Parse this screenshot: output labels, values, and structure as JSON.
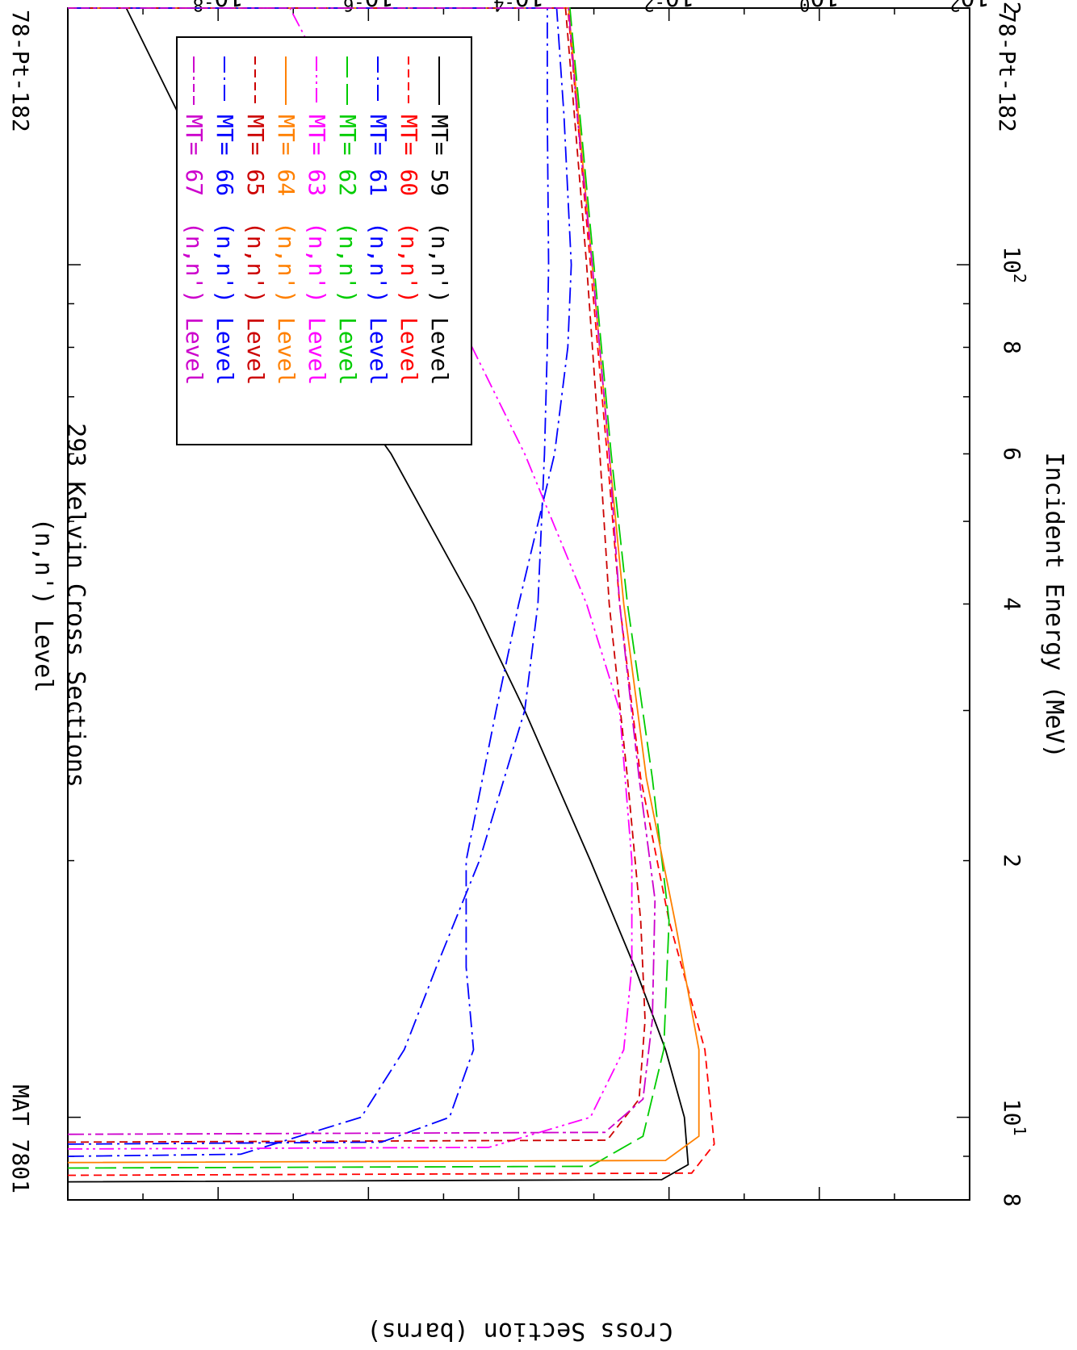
{
  "header": {
    "title_line1": "(n,n') Level",
    "title_line2": "293 Kelvin Cross Sections",
    "mat_label": "MAT 7801",
    "isotope_left": "78-Pt-182",
    "isotope_right": "78-Pt-182"
  },
  "chart_data": {
    "type": "line",
    "orientation": "rotated 90 degrees clockwise",
    "xlabel": "Incident Energy (MeV)",
    "ylabel": "Cross Section (barns)",
    "xscale": "log",
    "yscale": "log",
    "xlim": [
      8,
      200
    ],
    "ylim": [
      1e-10,
      100
    ],
    "x_ticks": [
      {
        "value": 8,
        "label": "8"
      },
      {
        "value": 20,
        "label": "2"
      },
      {
        "value": 40,
        "label": "4"
      },
      {
        "value": 60,
        "label": "6"
      },
      {
        "value": 80,
        "label": "8"
      },
      {
        "value": 100,
        "label": "10",
        "exp": "2"
      },
      {
        "value": 200,
        "label": "2"
      }
    ],
    "x_ticks_top": [
      {
        "value": 10,
        "label": "10",
        "exp": "1"
      }
    ],
    "y_ticks": [
      {
        "value": 100,
        "label": "10",
        "exp": "2"
      },
      {
        "value": 1,
        "label": "10",
        "exp": "0"
      },
      {
        "value": 0.01,
        "label": "10",
        "exp": "-2"
      },
      {
        "value": 0.0001,
        "label": "10",
        "exp": "-4"
      },
      {
        "value": 1e-06,
        "label": "10",
        "exp": "-6"
      },
      {
        "value": 1e-08,
        "label": "10",
        "exp": "-8"
      }
    ],
    "legend_position": "top-right",
    "series": [
      {
        "name": "MT= 59 (n,n') Level",
        "mt": "MT= 59",
        "rx": "(n,n') Level",
        "color": "#000000",
        "dash": "solid",
        "points": [
          [
            8.4,
            1e-10
          ],
          [
            8.45,
            0.008
          ],
          [
            8.8,
            0.018
          ],
          [
            10,
            0.016
          ],
          [
            12,
            0.009
          ],
          [
            15,
            0.0035
          ],
          [
            20,
            0.0009
          ],
          [
            30,
            0.00012
          ],
          [
            40,
            2.5e-05
          ],
          [
            60,
            2e-06
          ],
          [
            80,
            2e-07
          ],
          [
            100,
            4e-08
          ],
          [
            150,
            3e-09
          ],
          [
            200,
            6e-10
          ],
          [
            265,
            1e-10
          ]
        ]
      },
      {
        "name": "MT= 60 (n,n') Level",
        "mt": "MT= 60",
        "rx": "(n,n') Level",
        "color": "#ff0000",
        "dash": "dashed",
        "points": [
          [
            8.55,
            1e-10
          ],
          [
            8.6,
            0.02
          ],
          [
            9.3,
            0.04
          ],
          [
            12,
            0.03
          ],
          [
            17,
            0.01
          ],
          [
            25,
            0.0042
          ],
          [
            40,
            0.0022
          ],
          [
            60,
            0.0015
          ],
          [
            100,
            0.0009
          ],
          [
            150,
            0.0006
          ],
          [
            200,
            0.00045
          ],
          [
            265,
            0.00035
          ],
          [
            265.2,
            1e-10
          ]
        ]
      },
      {
        "name": "MT= 61 (n,n') Level",
        "mt": "MT= 61",
        "rx": "(n,n') Level",
        "color": "#0000ff",
        "dash": "dashdot",
        "points": [
          [
            9.0,
            1e-10
          ],
          [
            9.05,
            2e-08
          ],
          [
            10,
            8e-07
          ],
          [
            12,
            3e-06
          ],
          [
            15,
            8e-06
          ],
          [
            20,
            3e-05
          ],
          [
            30,
            0.00012
          ],
          [
            40,
            0.00018
          ],
          [
            60,
            0.00022
          ],
          [
            80,
            0.00024
          ],
          [
            100,
            0.00025
          ],
          [
            150,
            0.00024
          ],
          [
            200,
            0.00024
          ],
          [
            270,
            0.00023
          ],
          [
            270.2,
            1e-10
          ]
        ]
      },
      {
        "name": "MT= 62 (n,n') Level",
        "mt": "MT= 62",
        "rx": "(n,n') Level",
        "color": "#00cc00",
        "dash": "longdash",
        "points": [
          [
            8.72,
            1e-10
          ],
          [
            8.76,
            0.0009
          ],
          [
            9.5,
            0.0045
          ],
          [
            12,
            0.0085
          ],
          [
            17,
            0.01
          ],
          [
            25,
            0.006
          ],
          [
            40,
            0.0028
          ],
          [
            60,
            0.0017
          ],
          [
            100,
            0.001
          ],
          [
            150,
            0.00065
          ],
          [
            200,
            0.00048
          ],
          [
            267,
            0.00038
          ],
          [
            267.2,
            1e-10
          ]
        ]
      },
      {
        "name": "MT= 63 (n,n') Level",
        "mt": "MT= 63",
        "rx": "(n,n') Level",
        "color": "#ff00ff",
        "dash": "dashdotdot",
        "points": [
          [
            9.18,
            1e-10
          ],
          [
            9.22,
            4e-05
          ],
          [
            10,
            0.0009
          ],
          [
            12,
            0.0025
          ],
          [
            15,
            0.0032
          ],
          [
            20,
            0.0032
          ],
          [
            30,
            0.0022
          ],
          [
            40,
            0.0008
          ],
          [
            60,
            0.00012
          ],
          [
            80,
            2.4e-05
          ],
          [
            100,
            6e-06
          ],
          [
            150,
            5e-07
          ],
          [
            200,
            9e-08
          ],
          [
            265,
            1e-08
          ],
          [
            280,
            4e-09
          ]
        ]
      },
      {
        "name": "MT= 64 (n,n') Level",
        "mt": "MT= 64",
        "rx": "(n,n') Level",
        "color": "#ff8000",
        "dash": "solid",
        "points": [
          [
            8.85,
            1e-10
          ],
          [
            8.9,
            0.009
          ],
          [
            9.5,
            0.025
          ],
          [
            12,
            0.025
          ],
          [
            17,
            0.012
          ],
          [
            25,
            0.005
          ],
          [
            40,
            0.0025
          ],
          [
            60,
            0.0016
          ],
          [
            100,
            0.00095
          ],
          [
            150,
            0.00062
          ],
          [
            200,
            0.00046
          ],
          [
            265,
            0.00036
          ],
          [
            265.2,
            1e-10
          ]
        ]
      },
      {
        "name": "MT= 65 (n,n') Level",
        "mt": "MT= 65",
        "rx": "(n,n') Level",
        "color": "#cc0000",
        "dash": "dashed",
        "points": [
          [
            9.35,
            1e-10
          ],
          [
            9.4,
            0.0015
          ],
          [
            10.5,
            0.004
          ],
          [
            13,
            0.0048
          ],
          [
            17,
            0.0042
          ],
          [
            25,
            0.0028
          ],
          [
            40,
            0.0016
          ],
          [
            60,
            0.0012
          ],
          [
            100,
            0.0008
          ],
          [
            150,
            0.00055
          ],
          [
            200,
            0.00042
          ],
          [
            268,
            0.00034
          ],
          [
            268.2,
            1e-10
          ]
        ]
      },
      {
        "name": "MT= 66 (n,n') Level",
        "mt": "MT= 66",
        "rx": "(n,n') Level",
        "color": "#0000ff",
        "dash": "dashdot",
        "points": [
          [
            9.3,
            1e-10
          ],
          [
            9.35,
            1.5e-06
          ],
          [
            10,
            1.2e-05
          ],
          [
            12,
            2.5e-05
          ],
          [
            15,
            2e-05
          ],
          [
            20,
            2e-05
          ],
          [
            30,
            5e-05
          ],
          [
            40,
            0.0001
          ],
          [
            60,
            0.0003
          ],
          [
            80,
            0.00045
          ],
          [
            100,
            0.0005
          ],
          [
            150,
            0.0004
          ],
          [
            200,
            0.00032
          ],
          [
            272,
            0.00028
          ],
          [
            272.2,
            1e-10
          ]
        ]
      },
      {
        "name": "MT= 67 (n,n') Level",
        "mt": "MT= 67",
        "rx": "(n,n') Level",
        "color": "#cc00cc",
        "dash": "dashdotdash",
        "points": [
          [
            9.55,
            1e-10
          ],
          [
            9.6,
            0.0014
          ],
          [
            10.5,
            0.0045
          ],
          [
            13,
            0.006
          ],
          [
            18,
            0.0065
          ],
          [
            25,
            0.004
          ],
          [
            40,
            0.0022
          ],
          [
            60,
            0.0016
          ],
          [
            100,
            0.00095
          ],
          [
            150,
            0.0006
          ],
          [
            200,
            0.00046
          ],
          [
            270,
            0.00037
          ],
          [
            270.2,
            1e-10
          ]
        ]
      }
    ]
  }
}
